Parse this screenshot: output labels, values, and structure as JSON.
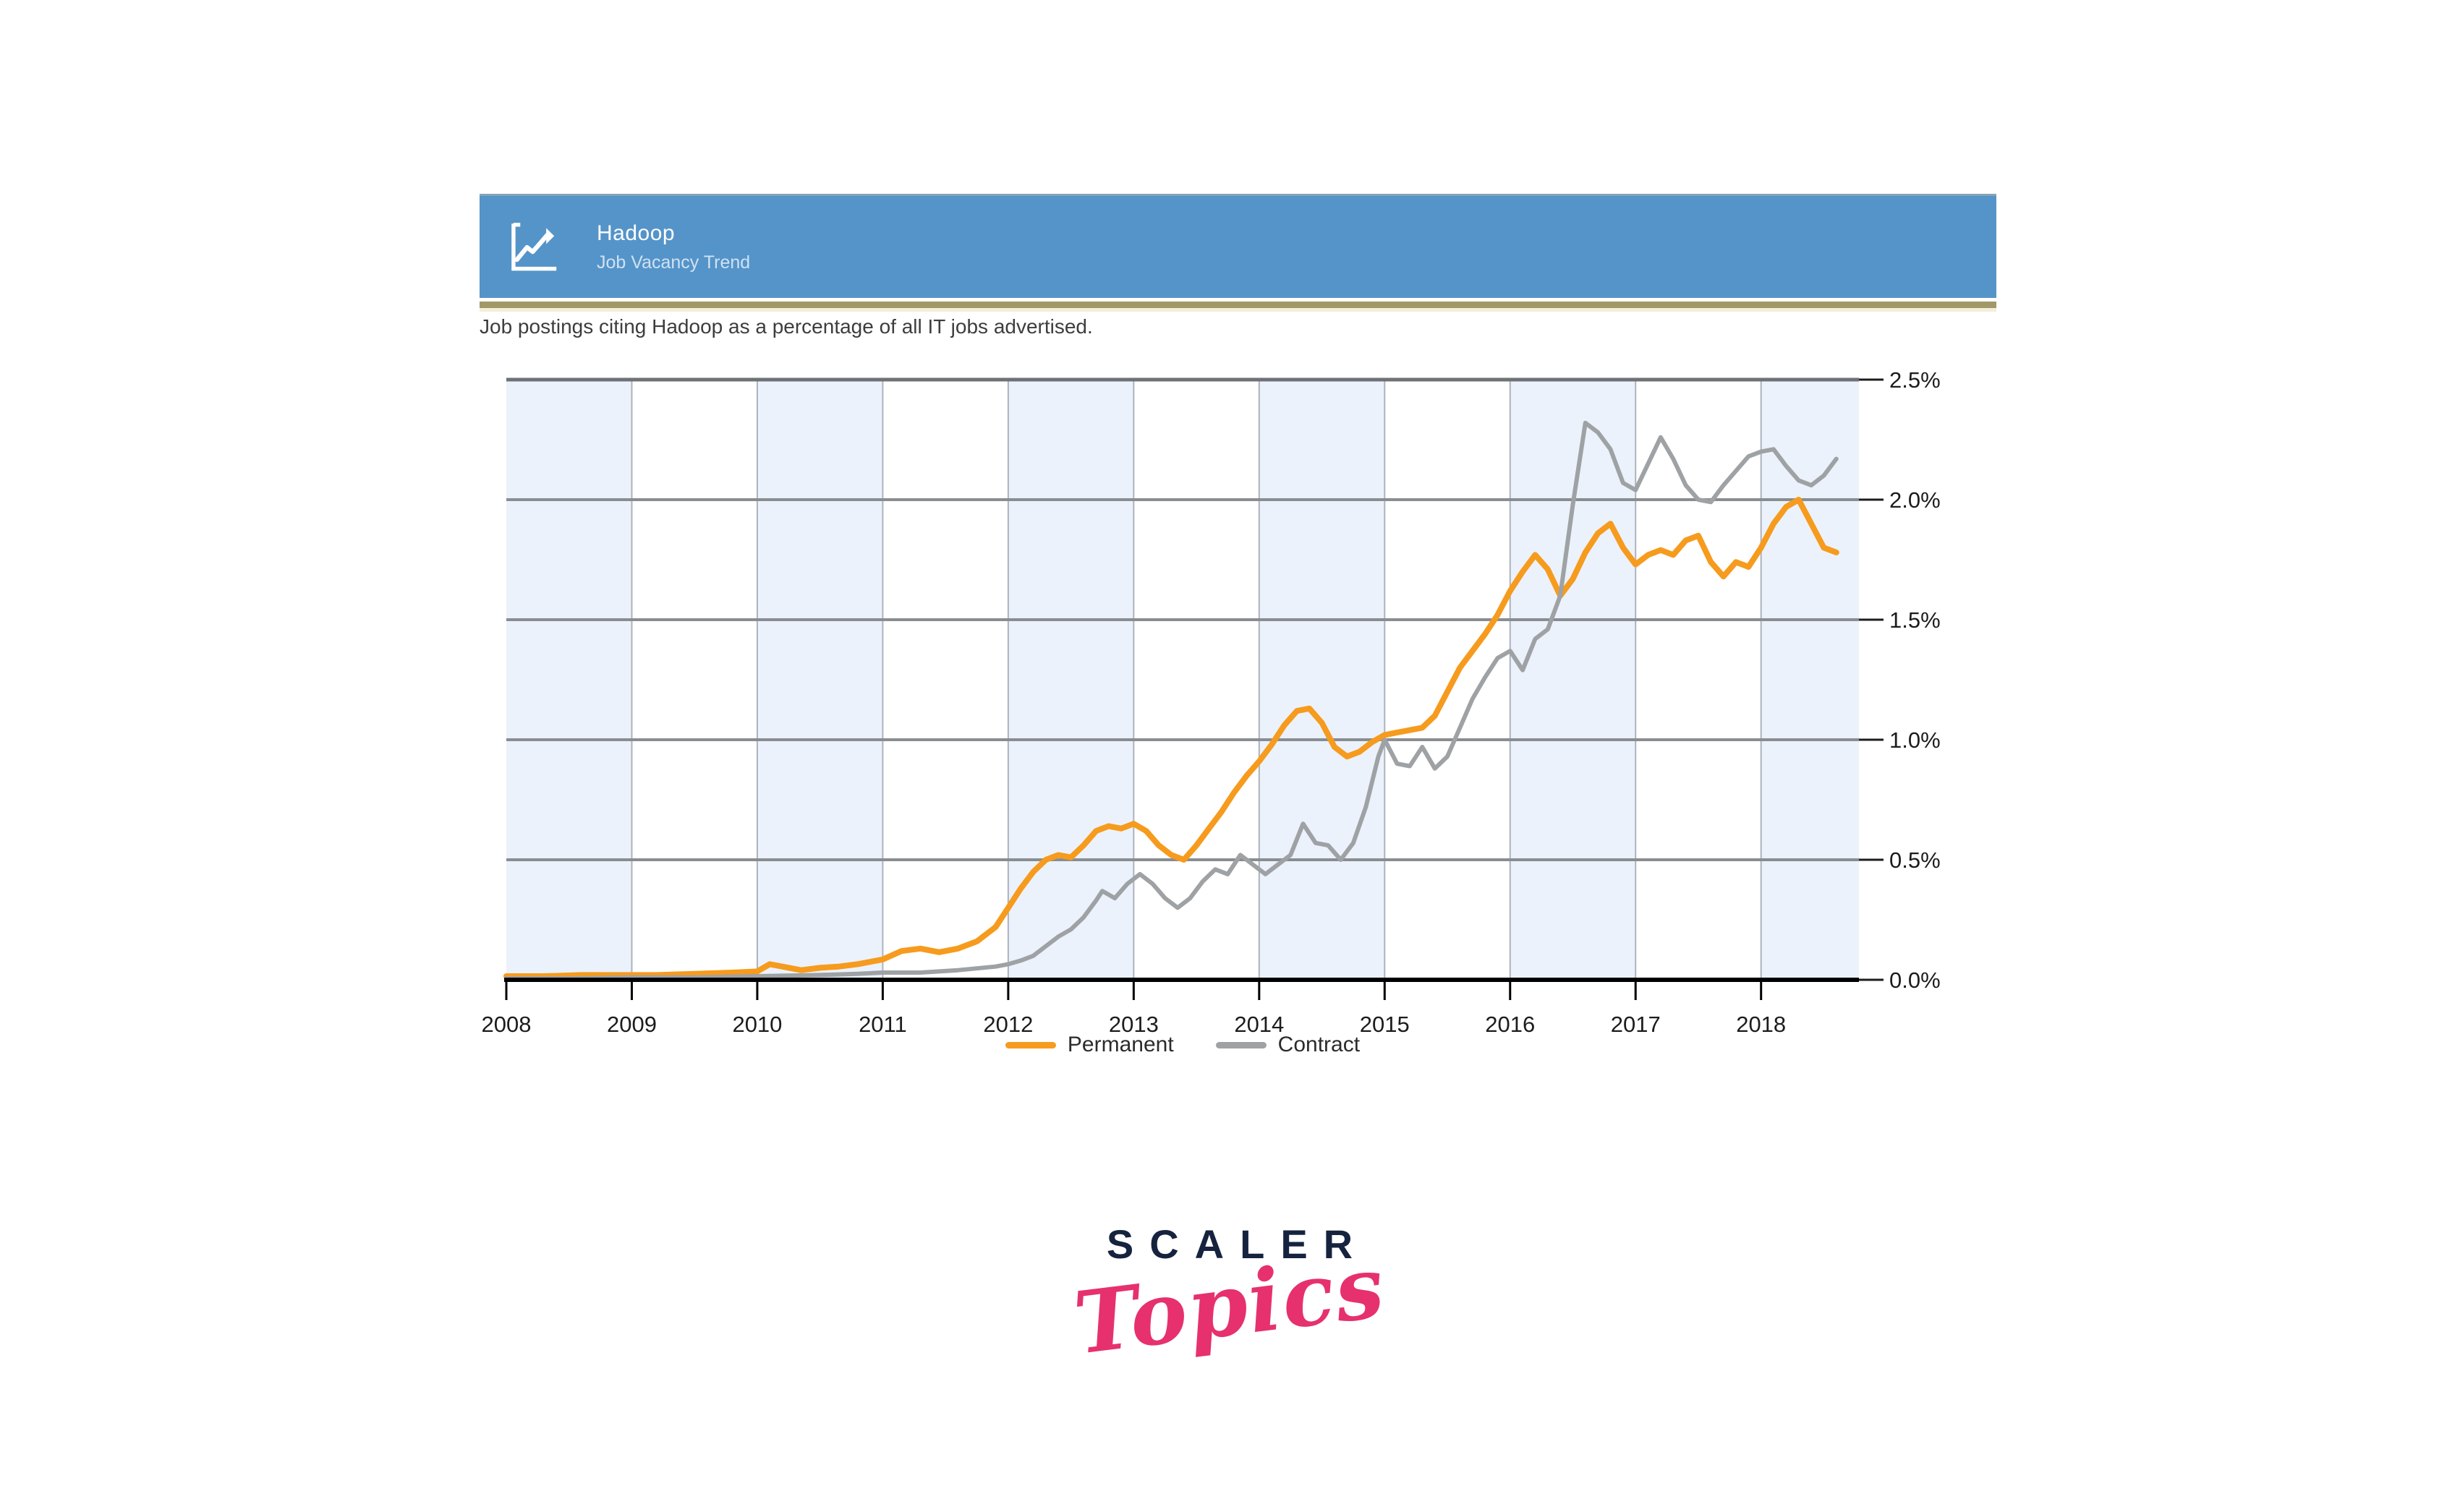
{
  "header": {
    "title": "Hadoop",
    "subtitle": "Job Vacancy Trend",
    "bar_color": "#5494c9",
    "strip_color": "#a19868",
    "icon": "trend-line-chart-icon"
  },
  "description": "Job postings citing Hadoop as a percentage of all IT jobs advertised.",
  "logo": {
    "line1": "SCALER",
    "line2": "Topics",
    "navy": "#16233f",
    "pink": "#e6316e"
  },
  "chart_data": {
    "type": "line",
    "title": "Hadoop Job Vacancy Trend",
    "xlabel": "",
    "ylabel": "",
    "x_axis": {
      "ticks": [
        2008,
        2009,
        2010,
        2011,
        2012,
        2013,
        2014,
        2015,
        2016,
        2017,
        2018
      ],
      "range": [
        2008,
        2018.78
      ]
    },
    "y_axis": {
      "tick_values": [
        0.0,
        0.5,
        1.0,
        1.5,
        2.0,
        2.5
      ],
      "tick_labels": [
        "0.0%",
        "0.5%",
        "1.0%",
        "1.5%",
        "2.0%",
        "2.5%"
      ],
      "range": [
        0,
        2.5
      ],
      "side": "right"
    },
    "grid": "on",
    "band_color": "#ebf2fb",
    "band_years_start_even": true,
    "legend_position": "bottom",
    "series": [
      {
        "name": "Permanent",
        "color": "#f69b1d",
        "width": 8,
        "points": [
          [
            2008.0,
            0.015
          ],
          [
            2008.3,
            0.015
          ],
          [
            2008.6,
            0.02
          ],
          [
            2008.9,
            0.02
          ],
          [
            2009.2,
            0.02
          ],
          [
            2009.5,
            0.025
          ],
          [
            2009.8,
            0.03
          ],
          [
            2010.0,
            0.035
          ],
          [
            2010.1,
            0.065
          ],
          [
            2010.2,
            0.055
          ],
          [
            2010.35,
            0.04
          ],
          [
            2010.5,
            0.05
          ],
          [
            2010.65,
            0.055
          ],
          [
            2010.8,
            0.065
          ],
          [
            2011.0,
            0.085
          ],
          [
            2011.15,
            0.12
          ],
          [
            2011.3,
            0.13
          ],
          [
            2011.45,
            0.115
          ],
          [
            2011.6,
            0.13
          ],
          [
            2011.75,
            0.16
          ],
          [
            2011.9,
            0.22
          ],
          [
            2012.0,
            0.3
          ],
          [
            2012.1,
            0.38
          ],
          [
            2012.2,
            0.45
          ],
          [
            2012.3,
            0.5
          ],
          [
            2012.4,
            0.52
          ],
          [
            2012.5,
            0.51
          ],
          [
            2012.6,
            0.56
          ],
          [
            2012.7,
            0.62
          ],
          [
            2012.8,
            0.64
          ],
          [
            2012.9,
            0.63
          ],
          [
            2013.0,
            0.65
          ],
          [
            2013.1,
            0.62
          ],
          [
            2013.2,
            0.56
          ],
          [
            2013.3,
            0.52
          ],
          [
            2013.4,
            0.5
          ],
          [
            2013.5,
            0.56
          ],
          [
            2013.6,
            0.63
          ],
          [
            2013.7,
            0.7
          ],
          [
            2013.8,
            0.78
          ],
          [
            2013.9,
            0.85
          ],
          [
            2014.0,
            0.91
          ],
          [
            2014.1,
            0.98
          ],
          [
            2014.2,
            1.06
          ],
          [
            2014.3,
            1.12
          ],
          [
            2014.4,
            1.13
          ],
          [
            2014.5,
            1.07
          ],
          [
            2014.6,
            0.97
          ],
          [
            2014.7,
            0.93
          ],
          [
            2014.8,
            0.95
          ],
          [
            2014.9,
            0.99
          ],
          [
            2015.0,
            1.02
          ],
          [
            2015.1,
            1.03
          ],
          [
            2015.2,
            1.04
          ],
          [
            2015.3,
            1.05
          ],
          [
            2015.4,
            1.1
          ],
          [
            2015.5,
            1.2
          ],
          [
            2015.6,
            1.3
          ],
          [
            2015.7,
            1.37
          ],
          [
            2015.8,
            1.44
          ],
          [
            2015.9,
            1.52
          ],
          [
            2016.0,
            1.62
          ],
          [
            2016.1,
            1.7
          ],
          [
            2016.2,
            1.77
          ],
          [
            2016.3,
            1.71
          ],
          [
            2016.4,
            1.6
          ],
          [
            2016.5,
            1.67
          ],
          [
            2016.6,
            1.78
          ],
          [
            2016.7,
            1.86
          ],
          [
            2016.8,
            1.9
          ],
          [
            2016.9,
            1.8
          ],
          [
            2017.0,
            1.73
          ],
          [
            2017.1,
            1.77
          ],
          [
            2017.2,
            1.79
          ],
          [
            2017.3,
            1.77
          ],
          [
            2017.4,
            1.83
          ],
          [
            2017.5,
            1.85
          ],
          [
            2017.6,
            1.74
          ],
          [
            2017.7,
            1.68
          ],
          [
            2017.8,
            1.74
          ],
          [
            2017.9,
            1.72
          ],
          [
            2018.0,
            1.8
          ],
          [
            2018.1,
            1.9
          ],
          [
            2018.2,
            1.97
          ],
          [
            2018.3,
            2.0
          ],
          [
            2018.4,
            1.9
          ],
          [
            2018.5,
            1.8
          ],
          [
            2018.6,
            1.78
          ]
        ]
      },
      {
        "name": "Contract",
        "color": "#9fa2a5",
        "width": 6,
        "points": [
          [
            2008.0,
            0.005
          ],
          [
            2008.5,
            0.005
          ],
          [
            2009.0,
            0.01
          ],
          [
            2009.5,
            0.01
          ],
          [
            2010.0,
            0.015
          ],
          [
            2010.5,
            0.02
          ],
          [
            2010.8,
            0.025
          ],
          [
            2011.0,
            0.03
          ],
          [
            2011.3,
            0.03
          ],
          [
            2011.6,
            0.04
          ],
          [
            2011.9,
            0.055
          ],
          [
            2012.0,
            0.065
          ],
          [
            2012.1,
            0.08
          ],
          [
            2012.2,
            0.1
          ],
          [
            2012.3,
            0.14
          ],
          [
            2012.4,
            0.18
          ],
          [
            2012.5,
            0.21
          ],
          [
            2012.6,
            0.26
          ],
          [
            2012.7,
            0.33
          ],
          [
            2012.75,
            0.37
          ],
          [
            2012.85,
            0.34
          ],
          [
            2012.95,
            0.4
          ],
          [
            2013.05,
            0.44
          ],
          [
            2013.15,
            0.4
          ],
          [
            2013.25,
            0.34
          ],
          [
            2013.35,
            0.3
          ],
          [
            2013.45,
            0.34
          ],
          [
            2013.55,
            0.41
          ],
          [
            2013.65,
            0.46
          ],
          [
            2013.75,
            0.44
          ],
          [
            2013.85,
            0.52
          ],
          [
            2013.95,
            0.48
          ],
          [
            2014.05,
            0.44
          ],
          [
            2014.15,
            0.48
          ],
          [
            2014.25,
            0.52
          ],
          [
            2014.35,
            0.65
          ],
          [
            2014.45,
            0.57
          ],
          [
            2014.55,
            0.56
          ],
          [
            2014.65,
            0.5
          ],
          [
            2014.75,
            0.57
          ],
          [
            2014.85,
            0.72
          ],
          [
            2014.95,
            0.93
          ],
          [
            2015.0,
            1.0
          ],
          [
            2015.1,
            0.9
          ],
          [
            2015.2,
            0.89
          ],
          [
            2015.3,
            0.97
          ],
          [
            2015.4,
            0.88
          ],
          [
            2015.5,
            0.93
          ],
          [
            2015.6,
            1.05
          ],
          [
            2015.7,
            1.17
          ],
          [
            2015.8,
            1.26
          ],
          [
            2015.9,
            1.34
          ],
          [
            2016.0,
            1.37
          ],
          [
            2016.1,
            1.29
          ],
          [
            2016.2,
            1.42
          ],
          [
            2016.3,
            1.46
          ],
          [
            2016.4,
            1.6
          ],
          [
            2016.5,
            1.98
          ],
          [
            2016.6,
            2.32
          ],
          [
            2016.7,
            2.28
          ],
          [
            2016.8,
            2.21
          ],
          [
            2016.9,
            2.07
          ],
          [
            2017.0,
            2.04
          ],
          [
            2017.1,
            2.15
          ],
          [
            2017.2,
            2.26
          ],
          [
            2017.3,
            2.17
          ],
          [
            2017.4,
            2.06
          ],
          [
            2017.5,
            2.0
          ],
          [
            2017.6,
            1.99
          ],
          [
            2017.7,
            2.06
          ],
          [
            2017.8,
            2.12
          ],
          [
            2017.9,
            2.18
          ],
          [
            2018.0,
            2.2
          ],
          [
            2018.1,
            2.21
          ],
          [
            2018.2,
            2.14
          ],
          [
            2018.3,
            2.08
          ],
          [
            2018.4,
            2.06
          ],
          [
            2018.5,
            2.1
          ],
          [
            2018.6,
            2.17
          ]
        ]
      }
    ]
  }
}
